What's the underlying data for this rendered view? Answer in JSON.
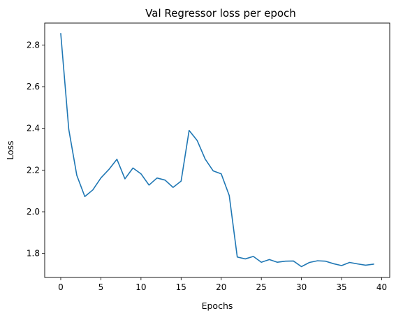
{
  "chart_data": {
    "type": "line",
    "title": "Val Regressor loss per epoch",
    "xlabel": "Epochs",
    "ylabel": "Loss",
    "xlim": [
      -2,
      41
    ],
    "ylim": [
      1.685,
      2.905
    ],
    "xticks": [
      0,
      5,
      10,
      15,
      20,
      25,
      30,
      35,
      40
    ],
    "yticks": [
      1.8,
      2.0,
      2.2,
      2.4,
      2.6,
      2.8
    ],
    "yticks_labels": [
      "1.8",
      "2.0",
      "2.2",
      "2.4",
      "2.6",
      "2.8"
    ],
    "grid": false,
    "line_color": "#1f77b4",
    "series": [
      {
        "x": [
          0,
          1,
          2,
          3,
          4,
          5,
          6,
          7,
          8,
          9,
          10,
          11,
          12,
          13,
          14,
          15,
          16,
          17,
          18,
          19,
          20,
          21,
          22,
          23,
          24,
          25,
          26,
          27,
          28,
          29,
          30,
          31,
          32,
          33,
          34,
          35,
          36,
          37,
          38,
          39
        ],
        "values": [
          2.855,
          2.395,
          2.175,
          2.073,
          2.105,
          2.162,
          2.203,
          2.252,
          2.158,
          2.21,
          2.182,
          2.128,
          2.162,
          2.152,
          2.117,
          2.147,
          2.39,
          2.342,
          2.253,
          2.196,
          2.182,
          2.078,
          1.783,
          1.774,
          1.786,
          1.758,
          1.771,
          1.758,
          1.763,
          1.764,
          1.737,
          1.757,
          1.765,
          1.763,
          1.751,
          1.742,
          1.757,
          1.75,
          1.744,
          1.749
        ]
      }
    ]
  }
}
